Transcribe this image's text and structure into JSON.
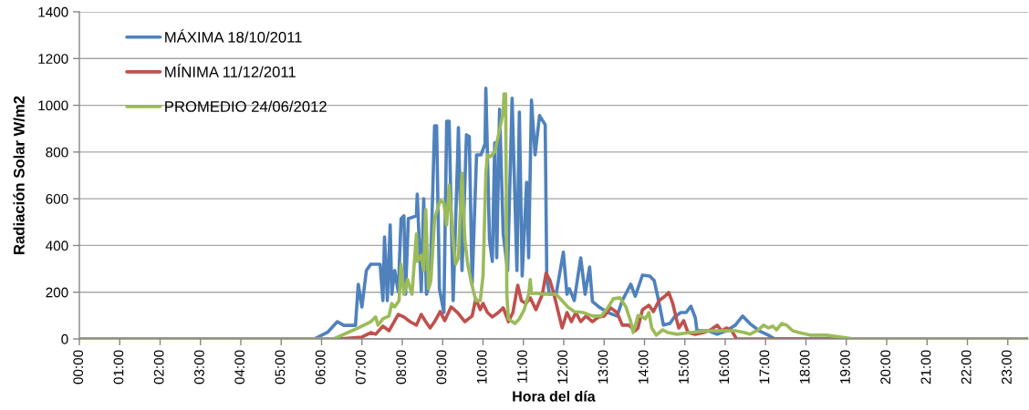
{
  "chart_data": {
    "type": "line",
    "xlabel": "Hora del día",
    "ylabel": "Radiación Solar W/m2",
    "xlim": [
      0,
      23.5
    ],
    "xticks": [
      {
        "value": 0,
        "label": "00:00"
      },
      {
        "value": 1,
        "label": "01:00"
      },
      {
        "value": 2,
        "label": "02:00"
      },
      {
        "value": 3,
        "label": "03:00"
      },
      {
        "value": 4,
        "label": "04:00"
      },
      {
        "value": 5,
        "label": "05:00"
      },
      {
        "value": 6,
        "label": "06:00"
      },
      {
        "value": 7,
        "label": "07:00"
      },
      {
        "value": 8,
        "label": "08:00"
      },
      {
        "value": 9,
        "label": "09:00"
      },
      {
        "value": 10,
        "label": "10:00"
      },
      {
        "value": 11,
        "label": "11:00"
      },
      {
        "value": 12,
        "label": "12:00"
      },
      {
        "value": 13,
        "label": "13:00"
      },
      {
        "value": 14,
        "label": "14:00"
      },
      {
        "value": 15,
        "label": "15:00"
      },
      {
        "value": 16,
        "label": "16:00"
      },
      {
        "value": 17,
        "label": "17:00"
      },
      {
        "value": 18,
        "label": "18:00"
      },
      {
        "value": 19,
        "label": "19:00"
      },
      {
        "value": 20,
        "label": "20:00"
      },
      {
        "value": 21,
        "label": "21:00"
      },
      {
        "value": 22,
        "label": "22:00"
      },
      {
        "value": 23,
        "label": "23:00"
      }
    ],
    "ylim": [
      0,
      1400
    ],
    "yticks": [
      0,
      200,
      400,
      600,
      800,
      1000,
      1200,
      1400
    ],
    "grid": "y",
    "legend": "top left",
    "series": [
      {
        "name": "MÁXIMA 18/10/2011",
        "color": "#4f81bd",
        "x": [
          0,
          5.82,
          6.16,
          6.39,
          6.55,
          6.84,
          6.91,
          7.0,
          7.11,
          7.22,
          7.45,
          7.52,
          7.56,
          7.63,
          7.7,
          7.74,
          7.81,
          7.9,
          7.97,
          8.04,
          8.08,
          8.15,
          8.35,
          8.37,
          8.47,
          8.53,
          8.6,
          8.69,
          8.8,
          8.85,
          8.92,
          9.03,
          9.1,
          9.16,
          9.26,
          9.37,
          9.39,
          9.48,
          9.59,
          9.66,
          9.73,
          9.84,
          9.95,
          10.05,
          10.07,
          10.16,
          10.23,
          10.29,
          10.34,
          10.41,
          10.5,
          10.61,
          10.72,
          10.84,
          10.9,
          10.97,
          11.08,
          11.13,
          11.2,
          11.29,
          11.4,
          11.54,
          11.58,
          11.65,
          11.81,
          11.99,
          12.08,
          12.14,
          12.26,
          12.42,
          12.53,
          12.64,
          12.71,
          12.87,
          13.09,
          13.32,
          13.45,
          13.66,
          13.77,
          13.95,
          14.13,
          14.24,
          14.36,
          14.47,
          14.63,
          14.74,
          14.9,
          15.03,
          15.15,
          15.26,
          15.3,
          15.58,
          15.8,
          16.03,
          16.25,
          16.43,
          16.61,
          16.84,
          17.07,
          17.22,
          23.5
        ],
        "values": [
          0,
          0,
          30,
          74,
          58,
          58,
          234,
          137,
          293,
          320,
          320,
          164,
          437,
          164,
          488,
          191,
          293,
          203,
          515,
          527,
          191,
          515,
          527,
          620,
          203,
          600,
          191,
          242,
          912,
          912,
          215,
          113,
          932,
          932,
          164,
          776,
          905,
          293,
          874,
          866,
          234,
          788,
          788,
          835,
          1073,
          425,
          332,
          839,
          347,
          983,
          449,
          293,
          1030,
          293,
          971,
          269,
          671,
          347,
          1022,
          788,
          956,
          917,
          254,
          191,
          191,
          371,
          191,
          215,
          164,
          347,
          191,
          308,
          160,
          137,
          113,
          98,
          164,
          234,
          183,
          273,
          269,
          250,
          156,
          59,
          66,
          94,
          113,
          113,
          140,
          90,
          35,
          35,
          20,
          35,
          59,
          98,
          66,
          35,
          16,
          0,
          0
        ]
      },
      {
        "name": "MÍNIMA 11/12/2011",
        "color": "#c0504d",
        "x": [
          0,
          6.43,
          7.0,
          7.22,
          7.34,
          7.52,
          7.67,
          7.9,
          8.04,
          8.19,
          8.35,
          8.47,
          8.58,
          8.69,
          8.8,
          8.94,
          9.05,
          9.21,
          9.37,
          9.55,
          9.73,
          9.82,
          9.93,
          10.0,
          10.11,
          10.23,
          10.38,
          10.5,
          10.63,
          10.74,
          10.86,
          10.95,
          11.06,
          11.17,
          11.31,
          11.47,
          11.56,
          11.65,
          11.74,
          11.85,
          11.96,
          12.08,
          12.19,
          12.3,
          12.42,
          12.55,
          12.71,
          12.87,
          13.0,
          13.16,
          13.32,
          13.45,
          13.61,
          13.77,
          13.84,
          13.95,
          14.11,
          14.22,
          14.36,
          14.51,
          14.6,
          14.7,
          14.79,
          14.85,
          14.97,
          15.08,
          15.26,
          15.46,
          15.64,
          15.8,
          15.91,
          16.03,
          16.16,
          16.28,
          23.5
        ],
        "values": [
          0,
          0,
          8,
          27,
          20,
          55,
          35,
          105,
          94,
          74,
          59,
          105,
          74,
          47,
          74,
          117,
          78,
          137,
          113,
          74,
          98,
          172,
          125,
          152,
          113,
          94,
          113,
          133,
          74,
          113,
          230,
          164,
          152,
          176,
          125,
          191,
          281,
          254,
          203,
          125,
          47,
          113,
          74,
          113,
          74,
          98,
          74,
          94,
          98,
          133,
          113,
          59,
          59,
          35,
          47,
          125,
          144,
          117,
          164,
          183,
          199,
          152,
          86,
          47,
          78,
          27,
          20,
          27,
          39,
          59,
          35,
          47,
          35,
          0,
          0
        ]
      },
      {
        "name": "PROMEDIO 24/06/2012",
        "color": "#9bbb59",
        "x": [
          0,
          6.3,
          6.91,
          7.22,
          7.34,
          7.4,
          7.52,
          7.67,
          7.74,
          7.81,
          7.92,
          7.97,
          8.04,
          8.13,
          8.24,
          8.35,
          8.37,
          8.47,
          8.53,
          8.58,
          8.65,
          8.71,
          8.8,
          8.87,
          8.94,
          9.03,
          9.1,
          9.16,
          9.26,
          9.32,
          9.39,
          9.48,
          9.55,
          9.62,
          9.71,
          9.82,
          9.93,
          10.0,
          10.07,
          10.11,
          10.18,
          10.29,
          10.41,
          10.5,
          10.52,
          10.56,
          10.59,
          10.63,
          10.79,
          10.9,
          11.02,
          11.13,
          11.17,
          11.2,
          11.35,
          11.51,
          11.65,
          11.81,
          11.96,
          12.1,
          12.26,
          12.48,
          12.71,
          12.93,
          13.09,
          13.23,
          13.39,
          13.54,
          13.66,
          13.72,
          13.84,
          13.91,
          14.02,
          14.11,
          14.18,
          14.29,
          14.45,
          14.58,
          14.81,
          15.12,
          15.58,
          16.03,
          16.25,
          16.48,
          16.61,
          16.82,
          16.95,
          17.07,
          17.18,
          17.27,
          17.4,
          17.52,
          17.67,
          17.83,
          18.13,
          18.51,
          18.87,
          19.19,
          23.5
        ],
        "values": [
          0,
          0,
          47,
          74,
          94,
          59,
          86,
          98,
          152,
          137,
          164,
          320,
          191,
          254,
          191,
          449,
          332,
          359,
          293,
          554,
          215,
          254,
          515,
          554,
          593,
          581,
          488,
          659,
          425,
          320,
          347,
          710,
          425,
          320,
          242,
          164,
          164,
          269,
          710,
          788,
          780,
          800,
          893,
          971,
          1049,
          1049,
          191,
          86,
          66,
          86,
          125,
          191,
          254,
          195,
          195,
          191,
          191,
          191,
          164,
          137,
          117,
          113,
          98,
          98,
          133,
          172,
          176,
          137,
          74,
          27,
          100,
          98,
          86,
          113,
          47,
          16,
          39,
          27,
          20,
          27,
          35,
          35,
          35,
          27,
          20,
          39,
          59,
          47,
          55,
          39,
          66,
          59,
          35,
          27,
          16,
          16,
          8,
          0,
          0
        ]
      }
    ]
  }
}
